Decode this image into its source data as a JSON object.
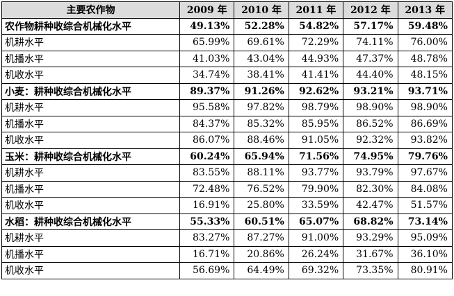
{
  "table": {
    "headers": [
      "主要农作物",
      "2009 年",
      "2010 年",
      "2011 年",
      "2012 年",
      "2013 年"
    ],
    "rows": [
      {
        "label": "农作物耕种收综合机械化水平",
        "values": [
          "49.13%",
          "52.28%",
          "54.82%",
          "57.17%",
          "59.48%"
        ],
        "group": true
      },
      {
        "label": "机耕水平",
        "values": [
          "65.99%",
          "69.61%",
          "72.29%",
          "74.11%",
          "76.00%"
        ],
        "group": false
      },
      {
        "label": "机播水平",
        "values": [
          "41.03%",
          "43.04%",
          "44.93%",
          "47.37%",
          "48.78%"
        ],
        "group": false
      },
      {
        "label": "机收水平",
        "values": [
          "34.74%",
          "38.41%",
          "41.41%",
          "44.40%",
          "48.15%"
        ],
        "group": false
      },
      {
        "label": "小麦：耕种收综合机械化水平",
        "values": [
          "89.37%",
          "91.26%",
          "92.62%",
          "93.21%",
          "93.71%"
        ],
        "group": true
      },
      {
        "label": "机耕水平",
        "values": [
          "95.58%",
          "97.82%",
          "98.79%",
          "98.90%",
          "98.90%"
        ],
        "group": false
      },
      {
        "label": "机播水平",
        "values": [
          "84.37%",
          "85.32%",
          "85.95%",
          "86.52%",
          "86.69%"
        ],
        "group": false
      },
      {
        "label": "机收水平",
        "values": [
          "86.07%",
          "88.46%",
          "91.05%",
          "92.32%",
          "93.82%"
        ],
        "group": false
      },
      {
        "label": "玉米：耕种收综合机械化水平",
        "values": [
          "60.24%",
          "65.94%",
          "71.56%",
          "74.95%",
          "79.76%"
        ],
        "group": true
      },
      {
        "label": "机耕水平",
        "values": [
          "83.55%",
          "88.11%",
          "93.77%",
          "93.79%",
          "97.67%"
        ],
        "group": false
      },
      {
        "label": "机播水平",
        "values": [
          "72.48%",
          "76.52%",
          "79.90%",
          "82.30%",
          "84.08%"
        ],
        "group": false
      },
      {
        "label": "机收水平",
        "values": [
          "16.91%",
          "25.80%",
          "33.59%",
          "42.47%",
          "51.57%"
        ],
        "group": false
      },
      {
        "label": "水稻：耕种收综合机械化水平",
        "values": [
          "55.33%",
          "60.51%",
          "65.07%",
          "68.82%",
          "73.14%"
        ],
        "group": true
      },
      {
        "label": "机耕水平",
        "values": [
          "83.27%",
          "87.27%",
          "91.00%",
          "93.29%",
          "95.09%"
        ],
        "group": false
      },
      {
        "label": "机播水平",
        "values": [
          "16.71%",
          "20.86%",
          "26.24%",
          "31.67%",
          "36.10%"
        ],
        "group": false
      },
      {
        "label": "机收水平",
        "values": [
          "56.69%",
          "64.49%",
          "69.32%",
          "73.35%",
          "80.91%"
        ],
        "group": false
      }
    ]
  },
  "colors": {
    "header_bg": "#dcdcdc",
    "border": "#000000",
    "text": "#000000"
  }
}
